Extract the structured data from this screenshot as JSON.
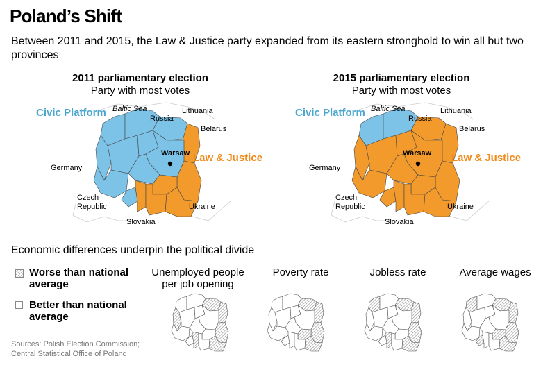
{
  "title": "Poland’s Shift",
  "subtitle": "Between 2011 and 2015, the Law & Justice party expanded from its eastern stronghold to win all but two provinces",
  "colors": {
    "civic_platform": "#7cc3e7",
    "law_justice": "#f39a2c",
    "civic_text": "#4aa6ce",
    "law_text": "#ef8a18",
    "hatch": "#999999"
  },
  "maps": [
    {
      "heading": "2011 parliamentary election",
      "subheading": "Party with most votes",
      "civic_label": "Civic Platform",
      "law_label": "Law & Justice",
      "capital": "Warsaw",
      "neighbors": {
        "baltic": "Baltic Sea",
        "russia": "Russia",
        "lithuania": "Lithuania",
        "belarus": "Belarus",
        "germany": "Germany",
        "czech": "Czech Republic",
        "ukraine": "Ukraine",
        "slovakia": "Slovakia"
      }
    },
    {
      "heading": "2015 parliamentary election",
      "subheading": "Party with most votes",
      "civic_label": "Civic Platform",
      "law_label": "Law & Justice",
      "capital": "Warsaw",
      "neighbors": {
        "baltic": "Baltic Sea",
        "russia": "Russia",
        "lithuania": "Lithuania",
        "belarus": "Belarus",
        "germany": "Germany",
        "czech": "Czech Republic",
        "ukraine": "Ukraine",
        "slovakia": "Slovakia"
      }
    }
  ],
  "section_title": "Economic differences underpin the political divide",
  "legend": {
    "worse": "Worse than national average",
    "better": "Better than national average"
  },
  "metrics": [
    {
      "title": "Unemployed people per job opening"
    },
    {
      "title": "Poverty rate"
    },
    {
      "title": "Jobless rate"
    },
    {
      "title": "Average wages"
    }
  ],
  "sources": "Sources: Polish Election Commission; Central Statistical Office of Poland"
}
